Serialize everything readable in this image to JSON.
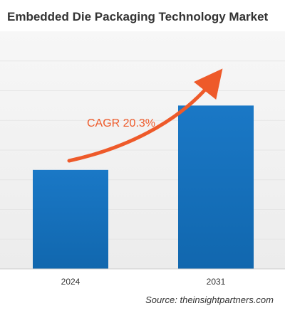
{
  "title": "Embedded Die Packaging Technology Market",
  "source": "Source: theinsightpartners.com",
  "cagr_label": "CAGR 20.3%",
  "colors": {
    "bar": "#1a75c2",
    "bar_dark": "#0f5fa3",
    "arrow": "#ee5a2a",
    "grid": "#e6e6e6",
    "background_band": "#f2f2f2",
    "axis_text": "#333333"
  },
  "chart_data": {
    "type": "bar",
    "title": "Embedded Die Packaging Technology Market",
    "categories": [
      "2024",
      "2031"
    ],
    "values": [
      1.0,
      1.65
    ],
    "xlabel": "",
    "ylabel": "",
    "ylim": [
      0,
      2.4
    ],
    "grid": true,
    "legend": "none",
    "annotation": "CAGR 20.3%"
  }
}
